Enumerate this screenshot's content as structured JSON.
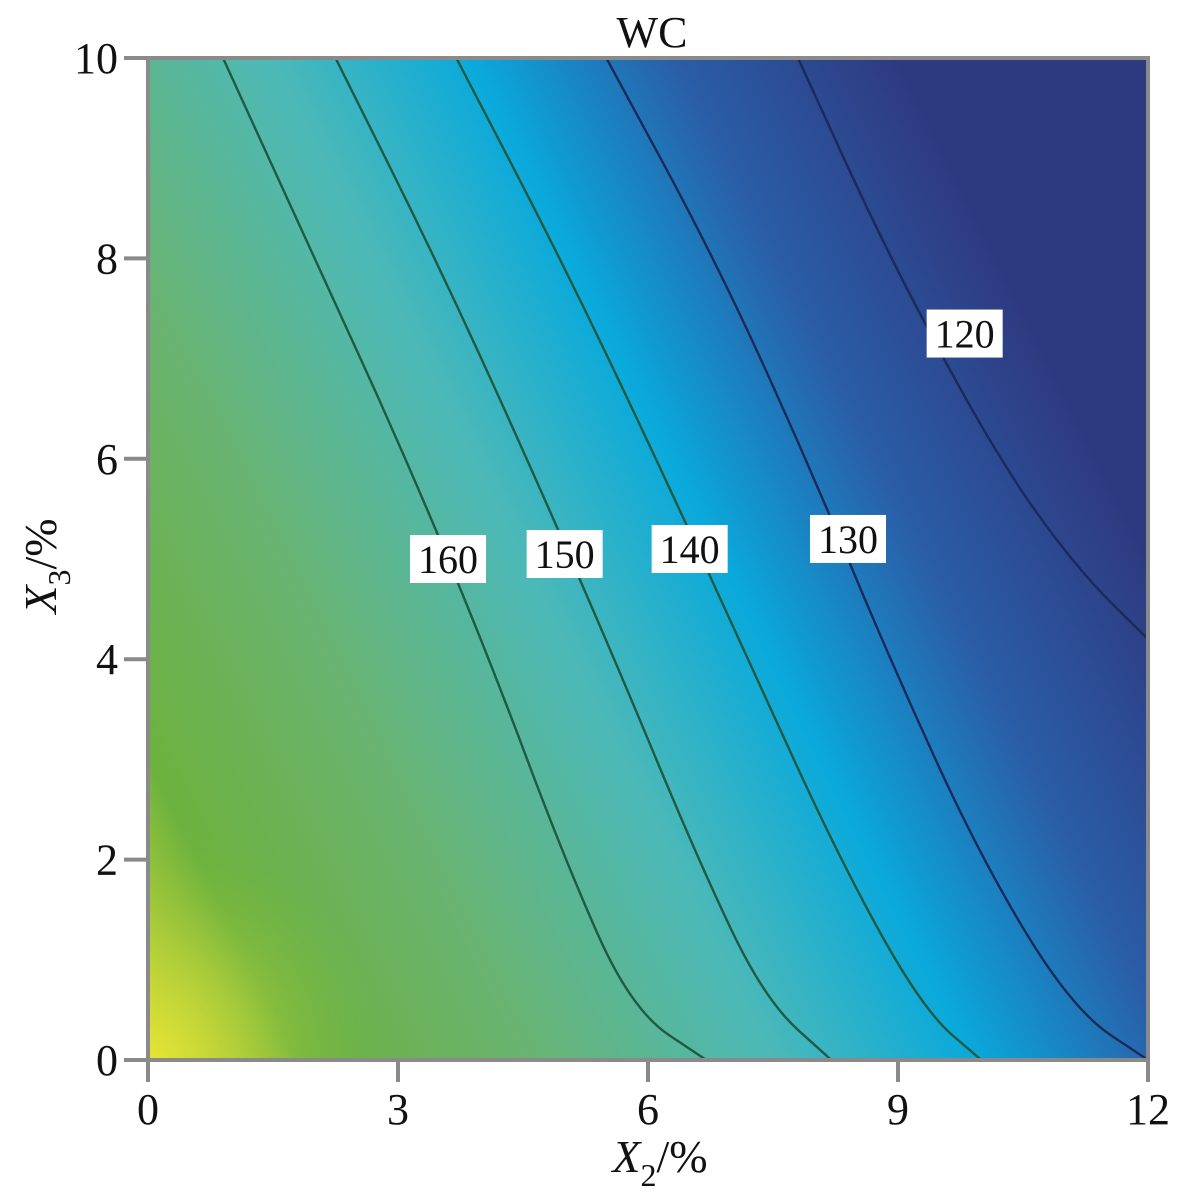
{
  "chart_data": {
    "type": "contour",
    "title": "WC",
    "xlabel": {
      "main": "X",
      "sub": "2",
      "unit": "/%"
    },
    "ylabel": {
      "main": "X",
      "sub": "3",
      "unit": "/%"
    },
    "xlim": [
      0,
      12
    ],
    "ylim": [
      0,
      10
    ],
    "xticks": [
      0,
      3,
      6,
      9,
      12
    ],
    "yticks": [
      0,
      2,
      4,
      6,
      8,
      10
    ],
    "grid": false,
    "colormap": [
      "#2e3a80",
      "#2a5ea8",
      "#0aa9dc",
      "#4cb9b8",
      "#6ab36f",
      "#6cb23e",
      "#e2e234"
    ],
    "contours": [
      {
        "level": 160,
        "label": "160",
        "label_at": [
          3.6,
          5.0
        ],
        "points": [
          [
            0.9,
            10
          ],
          [
            2.0,
            8
          ],
          [
            3.1,
            6
          ],
          [
            4.1,
            4
          ],
          [
            5.0,
            2
          ],
          [
            5.8,
            0.5
          ],
          [
            6.7,
            0
          ]
        ]
      },
      {
        "level": 150,
        "label": "150",
        "label_at": [
          5.0,
          5.05
        ],
        "points": [
          [
            2.25,
            10
          ],
          [
            3.45,
            8
          ],
          [
            4.55,
            6
          ],
          [
            5.6,
            4
          ],
          [
            6.6,
            2
          ],
          [
            7.4,
            0.6
          ],
          [
            8.2,
            0
          ]
        ]
      },
      {
        "level": 140,
        "label": "140",
        "label_at": [
          6.5,
          5.1
        ],
        "points": [
          [
            3.7,
            10
          ],
          [
            4.95,
            8
          ],
          [
            6.1,
            6
          ],
          [
            7.2,
            4
          ],
          [
            8.3,
            2
          ],
          [
            9.3,
            0.5
          ],
          [
            10.0,
            0
          ]
        ]
      },
      {
        "level": 130,
        "label": "130",
        "label_at": [
          8.4,
          5.2
        ],
        "points": [
          [
            5.5,
            10
          ],
          [
            6.8,
            8
          ],
          [
            7.9,
            6
          ],
          [
            8.9,
            4
          ],
          [
            10.0,
            2
          ],
          [
            11.1,
            0.5
          ],
          [
            12.0,
            0
          ]
        ]
      },
      {
        "level": 120,
        "label": "120",
        "label_at": [
          9.8,
          7.25
        ],
        "points": [
          [
            7.8,
            10
          ],
          [
            8.9,
            8
          ],
          [
            10.2,
            6
          ],
          [
            11.15,
            4.9
          ],
          [
            12.0,
            4.2
          ]
        ]
      }
    ]
  }
}
